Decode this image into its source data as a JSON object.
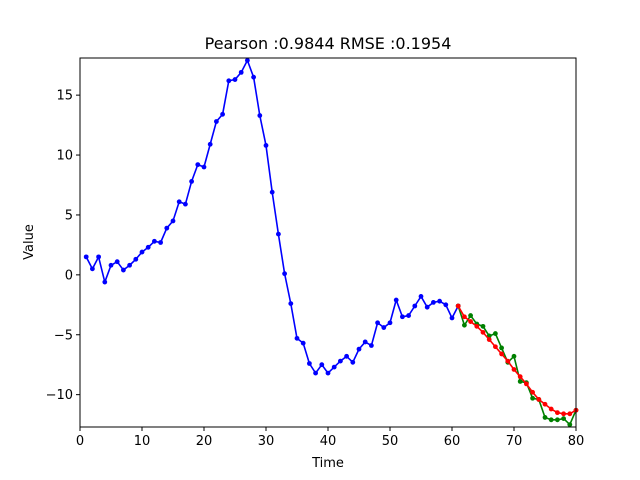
{
  "chart_data": {
    "type": "line",
    "title": "Pearson :0.9844  RMSE :0.1954",
    "xlabel": "Time",
    "ylabel": "Value",
    "xlim": [
      0,
      80
    ],
    "ylim": [
      -12.7,
      18.1
    ],
    "x_ticks": [
      0,
      10,
      20,
      30,
      40,
      50,
      60,
      70,
      80
    ],
    "y_ticks": [
      -10,
      -5,
      0,
      5,
      10,
      15
    ],
    "grid": false,
    "legend": "none",
    "series": [
      {
        "color": "#0000ff",
        "x": [
          1,
          2,
          3,
          4,
          5,
          6,
          7,
          8,
          9,
          10,
          11,
          12,
          13,
          14,
          15,
          16,
          17,
          18,
          19,
          20,
          21,
          22,
          23,
          24,
          25,
          26,
          27,
          28,
          29,
          30,
          31,
          32,
          33,
          34,
          35,
          36,
          37,
          38,
          39,
          40,
          41,
          42,
          43,
          44,
          45,
          46,
          47,
          48,
          49,
          50,
          51,
          52,
          53,
          54,
          55,
          56,
          57,
          58,
          59,
          60,
          61
        ],
        "y": [
          1.5,
          0.5,
          1.5,
          -0.6,
          0.8,
          1.1,
          0.4,
          0.8,
          1.3,
          1.9,
          2.3,
          2.8,
          2.7,
          3.9,
          4.5,
          6.1,
          5.9,
          7.8,
          9.2,
          9.0,
          10.9,
          12.8,
          13.4,
          16.2,
          16.3,
          16.9,
          17.9,
          16.5,
          13.3,
          10.8,
          6.9,
          3.4,
          0.1,
          -2.4,
          -5.3,
          -5.7,
          -7.4,
          -8.2,
          -7.5,
          -8.2,
          -7.7,
          -7.2,
          -6.8,
          -7.3,
          -6.2,
          -5.6,
          -5.9,
          -4.0,
          -4.4,
          -4.0,
          -2.1,
          -3.5,
          -3.4,
          -2.6,
          -1.8,
          -2.7,
          -2.3,
          -2.2,
          -2.5,
          -3.6,
          -2.6
        ]
      },
      {
        "color": "#008000",
        "x": [
          61,
          62,
          63,
          64,
          65,
          66,
          67,
          68,
          69,
          70,
          71,
          72,
          73,
          74,
          75,
          76,
          77,
          78,
          79,
          80
        ],
        "y": [
          -2.6,
          -4.2,
          -3.4,
          -4.1,
          -4.3,
          -5.1,
          -4.9,
          -6.1,
          -7.3,
          -6.8,
          -8.9,
          -9.0,
          -10.3,
          -10.4,
          -11.9,
          -12.1,
          -12.1,
          -12.0,
          -12.5,
          -11.3
        ]
      },
      {
        "color": "#ff0000",
        "x": [
          61,
          62,
          63,
          64,
          65,
          66,
          67,
          68,
          69,
          70,
          71,
          72,
          73,
          74,
          75,
          76,
          77,
          78,
          79,
          80
        ],
        "y": [
          -2.6,
          -3.5,
          -3.9,
          -4.3,
          -4.8,
          -5.4,
          -6.0,
          -6.6,
          -7.2,
          -7.9,
          -8.5,
          -9.1,
          -9.8,
          -10.4,
          -10.8,
          -11.2,
          -11.5,
          -11.6,
          -11.6,
          -11.3
        ]
      }
    ]
  }
}
